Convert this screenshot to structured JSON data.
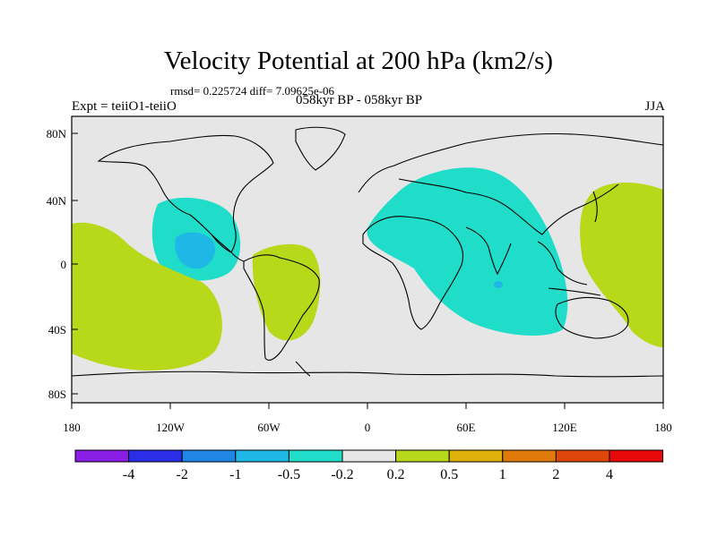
{
  "title": "Velocity Potential at 200 hPa (km2/s)",
  "stats": "rmsd= 0.225724 diff= 7.09625e-06",
  "left_label": "Expt = teiiO1-teiiO",
  "center_label": "058kyr BP - 058kyr BP",
  "right_label": "JJA",
  "x_ticks": [
    "180",
    "120W",
    "60W",
    "0",
    "60E",
    "120E",
    "180"
  ],
  "y_ticks": [
    "80N",
    "40N",
    "0",
    "40S",
    "80S"
  ],
  "colorbar": {
    "colors": [
      "#8a1de6",
      "#2a2ee6",
      "#1f86e6",
      "#1fb8e6",
      "#1fddc8",
      "#e6e6e6",
      "#b8d81a",
      "#e0b00a",
      "#e07a0a",
      "#e0460a",
      "#e60a0a"
    ],
    "labels": [
      "-4",
      "-2",
      "-1",
      "-0.5",
      "-0.2",
      "0.2",
      "0.5",
      "1",
      "2",
      "4"
    ]
  },
  "map": {
    "background": "#e6e6e6",
    "negative_light": "#1fddc8",
    "negative_mid": "#1fb8e6",
    "positive_light": "#b8d81a"
  }
}
